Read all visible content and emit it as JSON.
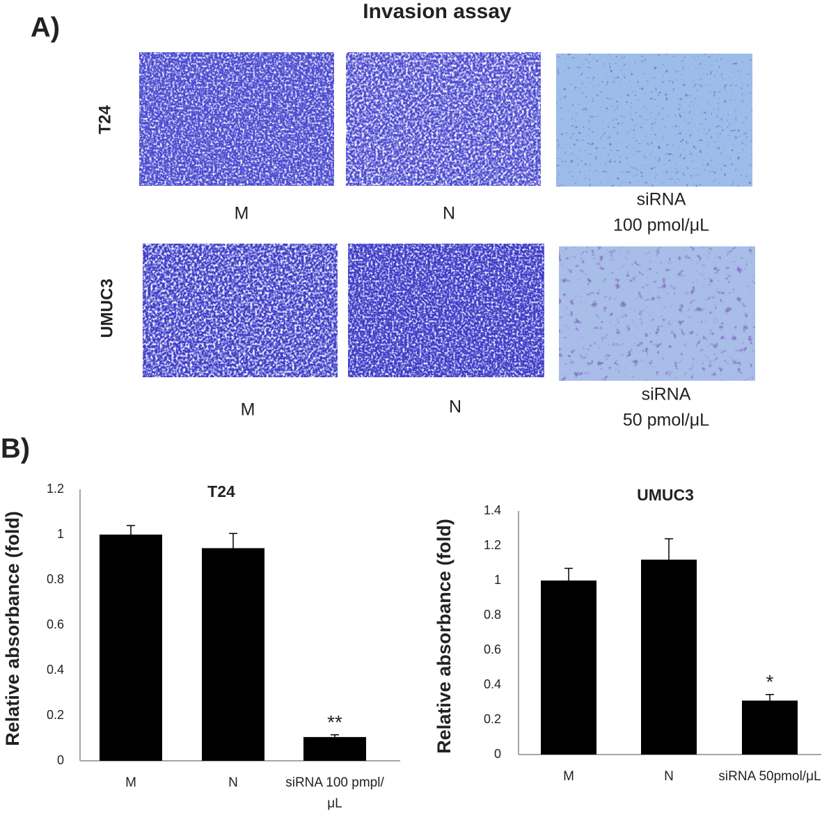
{
  "panel_labels": [
    "A)",
    "B)"
  ],
  "invasion": {
    "title": "Invasion assay",
    "rows": [
      {
        "label": "T24",
        "captions": [
          [
            "M"
          ],
          [
            "N"
          ],
          [
            "siRNA",
            "100 pmol/μL"
          ]
        ]
      },
      {
        "label": "UMUC3",
        "captions": [
          [
            "M"
          ],
          [
            "N"
          ],
          [
            "siRNA",
            "50 pmol/μL"
          ]
        ]
      }
    ]
  },
  "chart_data": [
    {
      "type": "bar",
      "title": "T24",
      "y_label": "Relative absorbance (fold)",
      "categories": [
        "M",
        "N",
        "siRNA 100 pmpl/μL"
      ],
      "values": [
        1.0,
        0.94,
        0.105
      ],
      "errors": [
        0.04,
        0.065,
        0.01
      ],
      "value_annotations": [
        null,
        null,
        "**"
      ],
      "color": "#000000",
      "ylim": [
        0,
        1.2
      ],
      "yticks": [
        0,
        0.2,
        0.4,
        0.6,
        0.8,
        1,
        1.2
      ],
      "grid": false
    },
    {
      "type": "bar",
      "title": "UMUC3",
      "y_label": "Relative absorbance (fold)",
      "categories": [
        "M",
        "N",
        "siRNA 50pmol/μL"
      ],
      "values": [
        1.0,
        1.12,
        0.31
      ],
      "errors": [
        0.07,
        0.12,
        0.035
      ],
      "value_annotations": [
        null,
        null,
        "*"
      ],
      "color": "#000000",
      "ylim": [
        0,
        1.4
      ],
      "yticks": [
        0,
        0.2,
        0.4,
        0.6,
        0.8,
        1,
        1.2,
        1.4
      ],
      "grid": false
    }
  ]
}
